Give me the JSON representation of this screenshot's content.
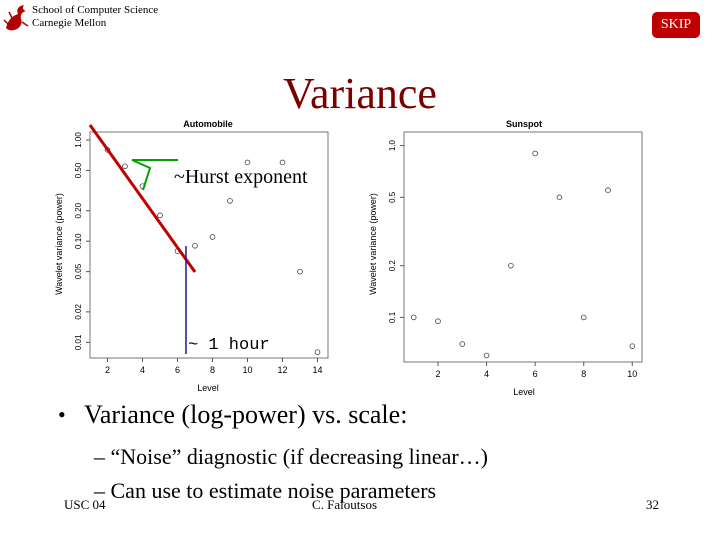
{
  "header": {
    "line1": "School of Computer Science",
    "line2": "Carnegie Mellon"
  },
  "skip_label": "SKIP",
  "slide_title": "Variance",
  "annotations": {
    "hurst": "~Hurst exponent",
    "hour": "~ 1 hour"
  },
  "bullet": "Variance (log-power) vs. scale:",
  "subbullets": [
    "– “Noise” diagnostic (if decreasing linear…)",
    "– Can use to estimate noise parameters"
  ],
  "footer": {
    "left": "USC 04",
    "center": "C. Faloutsos",
    "page": "32"
  },
  "colors": {
    "title": "#7a0000",
    "skip": "#c00000",
    "slope_line": "#c00000",
    "marker_line": "#1a1a8a"
  },
  "chart_data": [
    {
      "type": "scatter",
      "title": "Automobile",
      "xlabel": "Level",
      "ylabel": "Wavelet variance (power)",
      "y_scale": "log",
      "xlim": [
        1,
        14.6
      ],
      "ylim": [
        0.007,
        1.2
      ],
      "xticks": [
        "2",
        "4",
        "6",
        "8",
        "10",
        "12",
        "14"
      ],
      "yticks": [
        "0.01",
        "0.02",
        "0.05",
        "0.10",
        "0.20",
        "0.50",
        "1.00"
      ],
      "points": [
        {
          "x": 2,
          "y": 0.8
        },
        {
          "x": 3,
          "y": 0.55
        },
        {
          "x": 4,
          "y": 0.35
        },
        {
          "x": 5,
          "y": 0.18
        },
        {
          "x": 6,
          "y": 0.08
        },
        {
          "x": 7,
          "y": 0.09
        },
        {
          "x": 8,
          "y": 0.11
        },
        {
          "x": 9,
          "y": 0.25
        },
        {
          "x": 10,
          "y": 0.6
        },
        {
          "x": 12,
          "y": 0.6
        },
        {
          "x": 13,
          "y": 0.05
        },
        {
          "x": 14,
          "y": 0.008
        }
      ]
    },
    {
      "type": "scatter",
      "title": "Sunspot",
      "xlabel": "Level",
      "ylabel": "Wavelet variance (power)",
      "y_scale": "log",
      "xlim": [
        0.6,
        10.4
      ],
      "ylim": [
        0.055,
        1.2
      ],
      "xticks": [
        "2",
        "4",
        "6",
        "8",
        "10"
      ],
      "yticks": [
        "0.1",
        "0.2",
        "0.5",
        "1.0"
      ],
      "points": [
        {
          "x": 1,
          "y": 0.1
        },
        {
          "x": 2,
          "y": 0.095
        },
        {
          "x": 3,
          "y": 0.07
        },
        {
          "x": 4,
          "y": 0.06
        },
        {
          "x": 5,
          "y": 0.2
        },
        {
          "x": 6,
          "y": 0.9
        },
        {
          "x": 7,
          "y": 0.5
        },
        {
          "x": 8,
          "y": 0.1
        },
        {
          "x": 9,
          "y": 0.55
        },
        {
          "x": 10,
          "y": 0.068
        }
      ]
    }
  ]
}
